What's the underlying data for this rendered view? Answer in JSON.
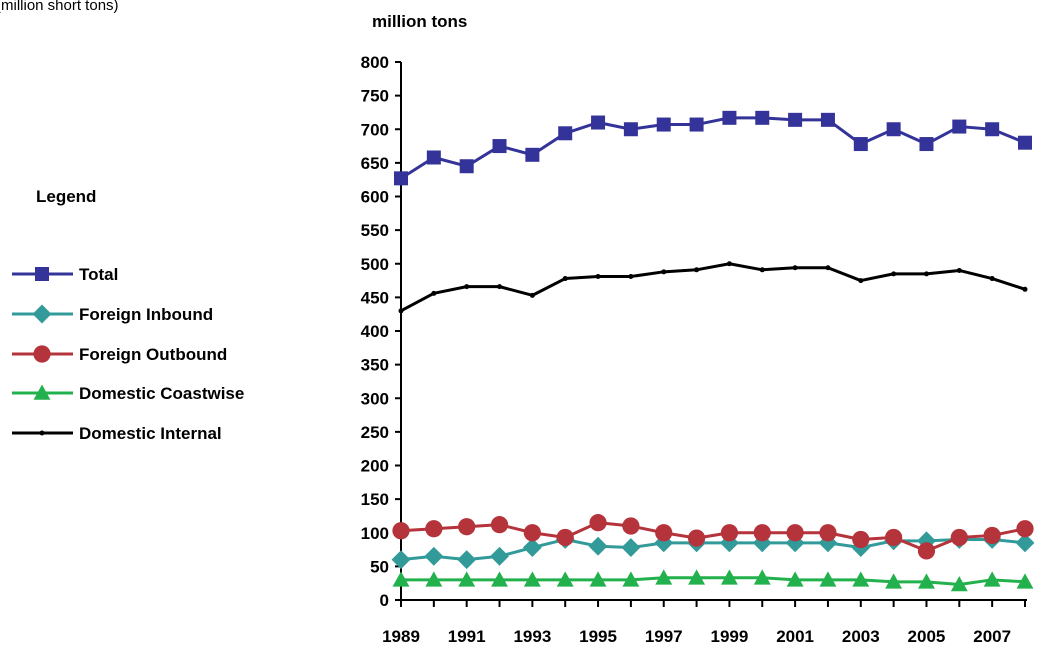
{
  "top_note": "(million short tons)",
  "legend_title": "Legend",
  "chart_data": {
    "type": "line",
    "title": "",
    "ylabel": "million tons",
    "xlabel": "",
    "ylim": [
      0,
      800
    ],
    "yticks": [
      0,
      50,
      100,
      150,
      200,
      250,
      300,
      350,
      400,
      450,
      500,
      550,
      600,
      650,
      700,
      750,
      800
    ],
    "ytick_labels": [
      "0",
      "50",
      "100",
      "150",
      "200",
      "250",
      "300",
      "350",
      "400",
      "450",
      "500",
      "550",
      "600",
      "650",
      "700",
      "750",
      "800"
    ],
    "x": [
      1989,
      1990,
      1991,
      1992,
      1993,
      1994,
      1995,
      1996,
      1997,
      1998,
      1999,
      2000,
      2001,
      2002,
      2003,
      2004,
      2005,
      2006,
      2007,
      2008
    ],
    "xtick_labels": [
      "1989",
      "1991",
      "1993",
      "1995",
      "1997",
      "1999",
      "2001",
      "2003",
      "2005",
      "2007"
    ],
    "xtick_label_years": [
      1989,
      1991,
      1993,
      1995,
      1997,
      1999,
      2001,
      2003,
      2005,
      2007
    ],
    "grid": false,
    "legend_position": "left",
    "series": [
      {
        "name": "Total",
        "color": "#33339a",
        "marker": "square",
        "values": [
          627,
          658,
          645,
          675,
          662,
          694,
          710,
          700,
          707,
          707,
          717,
          717,
          714,
          714,
          678,
          700,
          678,
          704,
          700,
          680
        ]
      },
      {
        "name": "Foreign Inbound",
        "color": "#339a9a",
        "marker": "diamond",
        "values": [
          60,
          65,
          60,
          65,
          78,
          90,
          80,
          78,
          85,
          85,
          85,
          85,
          85,
          85,
          78,
          88,
          88,
          90,
          90,
          85
        ]
      },
      {
        "name": "Foreign Outbound",
        "color": "#b5333a",
        "marker": "circle",
        "values": [
          103,
          106,
          109,
          112,
          100,
          93,
          115,
          110,
          100,
          92,
          100,
          100,
          100,
          100,
          90,
          93,
          73,
          93,
          96,
          106
        ]
      },
      {
        "name": "Domestic Coastwise",
        "color": "#22b14c",
        "marker": "triangle",
        "values": [
          30,
          30,
          30,
          30,
          30,
          30,
          30,
          30,
          33,
          33,
          33,
          33,
          30,
          30,
          30,
          27,
          27,
          23,
          30,
          27
        ]
      },
      {
        "name": "Domestic Internal",
        "color": "#000000",
        "marker": "dot",
        "values": [
          430,
          456,
          466,
          466,
          453,
          478,
          481,
          481,
          488,
          491,
          500,
          491,
          494,
          494,
          475,
          485,
          485,
          490,
          478,
          462
        ]
      }
    ]
  }
}
